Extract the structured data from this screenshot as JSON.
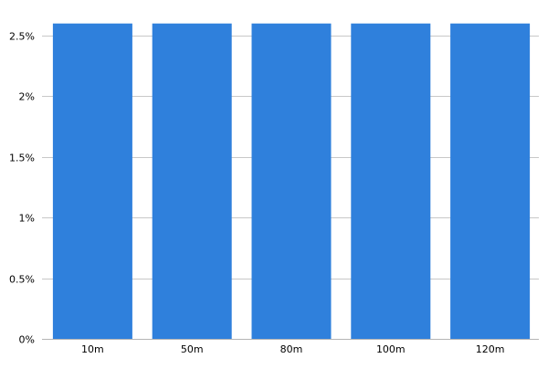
{
  "chart_data": {
    "type": "bar",
    "title": "",
    "xlabel": "",
    "ylabel": "",
    "categories": [
      "10m",
      "50m",
      "80m",
      "100m",
      "120m"
    ],
    "series": [
      {
        "values": [
          2.6,
          2.6,
          2.6,
          2.6,
          2.6
        ]
      }
    ],
    "ylim": [
      0,
      2.5
    ],
    "y_ticks": [
      0,
      0.5,
      1,
      1.5,
      2,
      2.5
    ],
    "y_tick_labels": [
      "0%",
      "0.5%",
      "1%",
      "1.5%",
      "2%",
      "2.5%"
    ],
    "grid": true,
    "legend": "none",
    "bar_color": "#2f80dc",
    "grid_color": "#c8c8c8",
    "axis_color": "#b4b4b4"
  }
}
